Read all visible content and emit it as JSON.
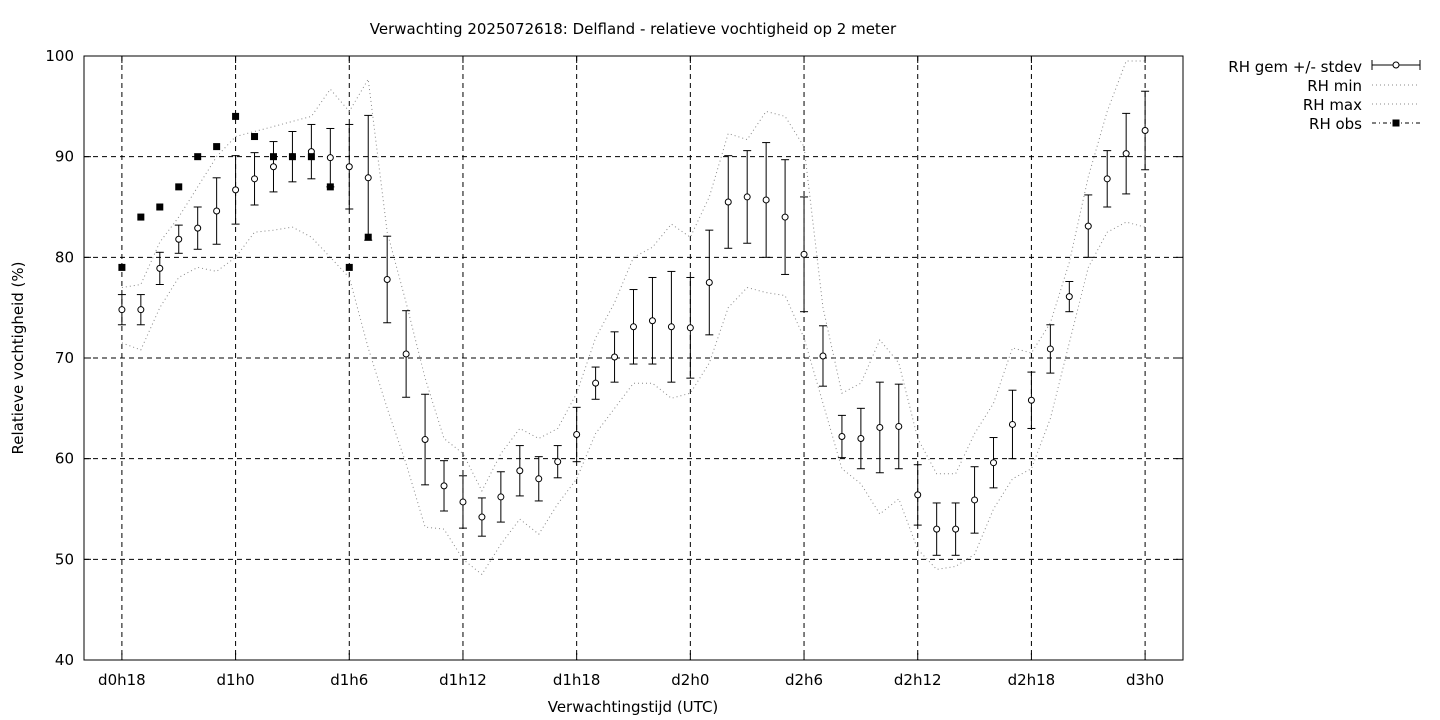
{
  "chart_data": {
    "type": "line",
    "title": "Verwachting 2025072618: Delfland - relatieve vochtigheid op 2 meter",
    "xlabel": "Verwachtingstijd (UTC)",
    "ylabel": "Relatieve vochtigheid (%)",
    "ylim": [
      40,
      100
    ],
    "xlim": [
      -2,
      56
    ],
    "grid": true,
    "legend_position": "outside-top-right",
    "xticks": [
      {
        "x": 0,
        "label": "d0h18"
      },
      {
        "x": 6,
        "label": "d1h0"
      },
      {
        "x": 12,
        "label": "d1h6"
      },
      {
        "x": 18,
        "label": "d1h12"
      },
      {
        "x": 24,
        "label": "d1h18"
      },
      {
        "x": 30,
        "label": "d2h0"
      },
      {
        "x": 36,
        "label": "d2h6"
      },
      {
        "x": 42,
        "label": "d2h12"
      },
      {
        "x": 48,
        "label": "d2h18"
      },
      {
        "x": 54,
        "label": "d3h0"
      }
    ],
    "yticks": [
      40,
      50,
      60,
      70,
      80,
      90,
      100
    ],
    "x": [
      0,
      1,
      2,
      3,
      4,
      5,
      6,
      7,
      8,
      9,
      10,
      11,
      12,
      13,
      14,
      15,
      16,
      17,
      18,
      19,
      20,
      21,
      22,
      23,
      24,
      25,
      26,
      27,
      28,
      29,
      30,
      31,
      32,
      33,
      34,
      35,
      36,
      37,
      38,
      39,
      40,
      41,
      42,
      43,
      44,
      45,
      46,
      47,
      48,
      49,
      50,
      51,
      52,
      53,
      54
    ],
    "series": [
      {
        "name": "RH gem +/- stdev",
        "style": "errorbars",
        "mean": [
          74.8,
          74.8,
          78.9,
          81.8,
          82.9,
          84.6,
          86.7,
          87.8,
          89.0,
          90.0,
          90.5,
          89.9,
          89.0,
          87.9,
          77.8,
          70.4,
          61.9,
          57.3,
          55.7,
          54.2,
          56.2,
          58.8,
          58.0,
          59.7,
          62.4,
          67.5,
          70.1,
          73.1,
          73.7,
          73.1,
          73.0,
          77.5,
          85.5,
          86.0,
          85.7,
          84.0,
          80.3,
          70.2,
          62.2,
          62.0,
          63.1,
          63.2,
          56.4,
          53.0,
          53.0,
          55.9,
          59.6,
          63.4,
          65.8,
          70.9,
          76.1,
          83.1,
          87.8,
          90.3,
          92.6
        ],
        "stdev": [
          1.5,
          1.5,
          1.6,
          1.4,
          2.1,
          3.3,
          3.4,
          2.6,
          2.5,
          2.5,
          2.7,
          2.9,
          4.2,
          6.2,
          4.3,
          4.3,
          4.5,
          2.5,
          2.6,
          1.9,
          2.5,
          2.5,
          2.2,
          1.6,
          2.7,
          1.6,
          2.5,
          3.7,
          4.3,
          5.5,
          5.0,
          5.2,
          4.6,
          4.6,
          5.7,
          5.7,
          5.7,
          3.0,
          2.1,
          3.0,
          4.5,
          4.2,
          3.0,
          2.6,
          2.6,
          3.3,
          2.5,
          3.4,
          2.8,
          2.4,
          1.5,
          3.1,
          2.8,
          4.0,
          3.9
        ]
      },
      {
        "name": "RH min",
        "style": "dotted",
        "values": [
          71.5,
          70.8,
          75.0,
          78.0,
          79.0,
          78.6,
          80.0,
          82.5,
          82.7,
          83.0,
          82.0,
          80.0,
          78.0,
          71.0,
          65.0,
          59.5,
          53.2,
          53.0,
          50.0,
          48.5,
          51.5,
          54.0,
          52.5,
          55.5,
          58.0,
          62.5,
          65.0,
          67.5,
          67.5,
          66.0,
          66.5,
          69.5,
          75.0,
          77.0,
          76.5,
          76.2,
          72.0,
          65.5,
          59.0,
          57.5,
          54.5,
          56.0,
          51.0,
          49.0,
          49.3,
          50.5,
          55.0,
          58.0,
          59.0,
          64.0,
          71.5,
          79.0,
          82.5,
          83.5,
          83.0
        ]
      },
      {
        "name": "RH max",
        "style": "dotted",
        "values": [
          77.0,
          77.3,
          81.5,
          84.0,
          87.0,
          90.0,
          92.0,
          92.5,
          93.0,
          93.5,
          94.0,
          96.7,
          94.5,
          97.7,
          82.5,
          75.5,
          68.0,
          62.0,
          60.5,
          56.8,
          60.5,
          63.0,
          62.0,
          63.0,
          66.5,
          72.0,
          75.5,
          80.0,
          81.0,
          83.3,
          82.0,
          86.0,
          92.3,
          91.7,
          94.5,
          94.0,
          91.0,
          75.0,
          66.5,
          67.5,
          71.8,
          69.5,
          62.0,
          58.5,
          58.5,
          62.5,
          65.5,
          71.0,
          70.5,
          73.5,
          79.5,
          88.0,
          94.5,
          99.5,
          99.5
        ]
      },
      {
        "name": "RH obs",
        "style": "squares",
        "points": [
          [
            0,
            79
          ],
          [
            1,
            84
          ],
          [
            2,
            85
          ],
          [
            3,
            87
          ],
          [
            4,
            90
          ],
          [
            5,
            91
          ],
          [
            6,
            94
          ],
          [
            7,
            92
          ],
          [
            8,
            90
          ],
          [
            9,
            90
          ],
          [
            10,
            90
          ],
          [
            11,
            87
          ],
          [
            12,
            79
          ],
          [
            13,
            82
          ]
        ]
      }
    ]
  },
  "legend": {
    "mean_label": "RH gem +/- stdev",
    "min_label": "RH min",
    "max_label": "RH max",
    "obs_label": "RH obs"
  }
}
